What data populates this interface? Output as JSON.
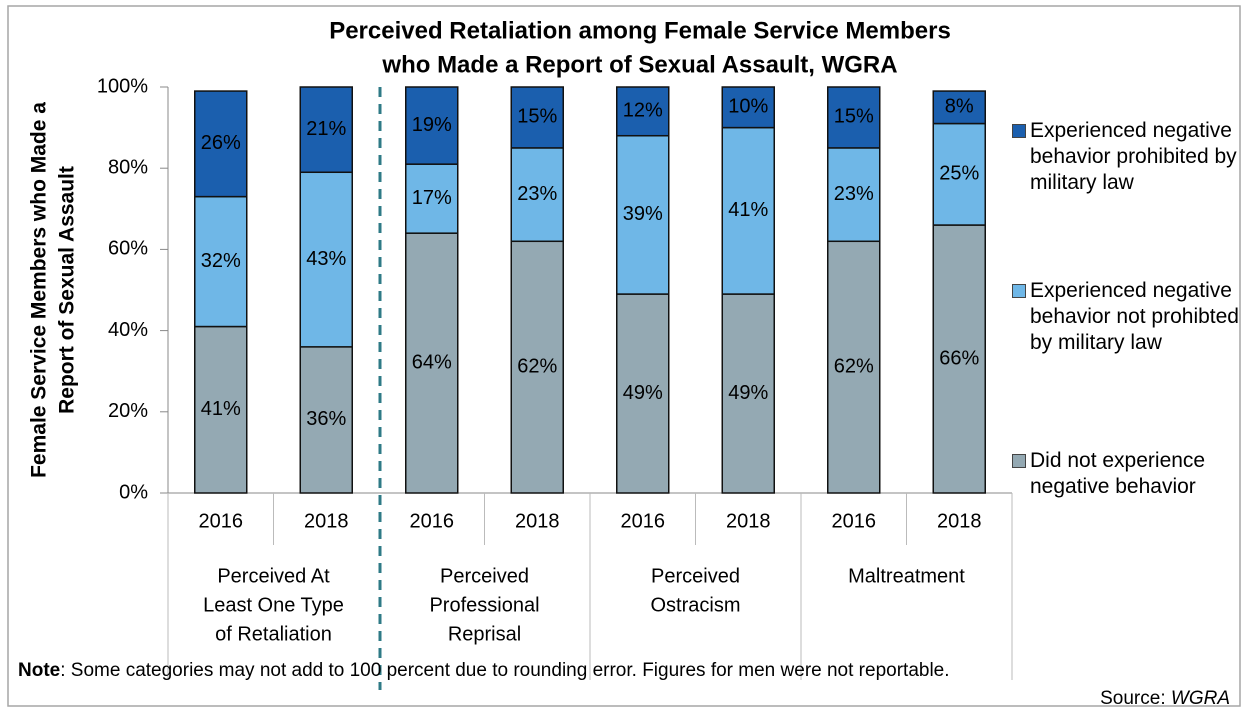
{
  "chart_data": {
    "type": "stacked_bar",
    "title": [
      "Perceived Retaliation among Female Service Members",
      "who Made a Report of Sexual Assault, WGRA"
    ],
    "y_label": [
      "Female Service Members who Made a",
      "Report of Sexual Assault"
    ],
    "categories": [
      "2016",
      "2018",
      "2016",
      "2018",
      "2016",
      "2018",
      "2016",
      "2018"
    ],
    "groups": [
      [
        "Perceived At",
        "Least One Type",
        "of Retaliation"
      ],
      [
        "Perceived",
        "Professional",
        "Reprisal"
      ],
      [
        "Perceived",
        "Ostracism"
      ],
      [
        "Maltreatment"
      ]
    ],
    "series": [
      {
        "name": "Did not experience negative behavior",
        "color": "#94a9b3",
        "values": [
          41,
          36,
          64,
          62,
          49,
          49,
          62,
          66
        ],
        "value_labels": [
          "41%",
          "36%",
          "64%",
          "62%",
          "49%",
          "49%",
          "62%",
          "66%"
        ]
      },
      {
        "name": "Experienced negative behavior not prohibted by military law",
        "color": "#6fb7e7",
        "values": [
          32,
          43,
          17,
          23,
          39,
          41,
          23,
          25
        ],
        "value_labels": [
          "32%",
          "43%",
          "17%",
          "23%",
          "39%",
          "41%",
          "23%",
          "25%"
        ]
      },
      {
        "name": "Experienced negative behavior prohibited by military law",
        "color": "#1b5fae",
        "values": [
          26,
          21,
          19,
          15,
          12,
          10,
          15,
          8
        ],
        "value_labels": [
          "26%",
          "21%",
          "19%",
          "15%",
          "12%",
          "10%",
          "15%",
          "8%"
        ]
      }
    ],
    "ylim": [
      0,
      100
    ],
    "yticks": [
      {
        "value": 0,
        "label": "0%"
      },
      {
        "value": 20,
        "label": "20%"
      },
      {
        "value": 40,
        "label": "40%"
      },
      {
        "value": 60,
        "label": "60%"
      },
      {
        "value": 80,
        "label": "80%"
      },
      {
        "value": 100,
        "label": "100%"
      }
    ],
    "note_label": "Note",
    "note_text": ": Some categories may not add to 100 percent due to rounding error. Figures for men were not reportable.",
    "source_label": "Source: ",
    "source_name": "WGRA"
  }
}
